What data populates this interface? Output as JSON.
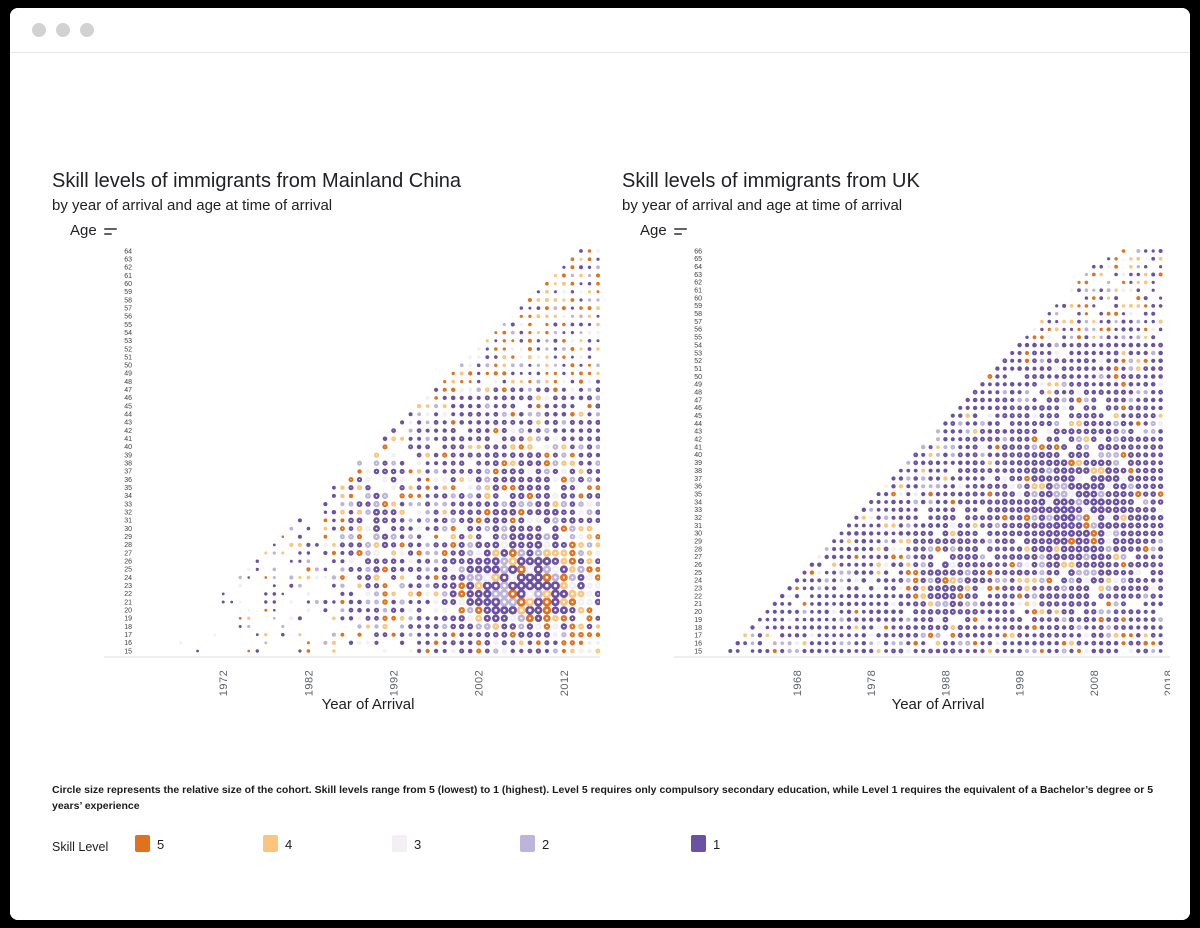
{
  "chart_data": [
    {
      "type": "scatter",
      "title": "Skill levels of immigrants from Mainland China",
      "subtitle": "by year of arrival and age at time of arrival",
      "xlabel": "Year of Arrival",
      "ylabel": "Age",
      "x_ticks": [
        1972,
        1982,
        1992,
        2002,
        2012
      ],
      "x_range": [
        1962,
        2016
      ],
      "y_range": [
        15,
        64
      ],
      "point_meaning": "each dot = arrival cohort (year x age); dot size = relative cohort size; colour = skill level 5 (lowest) to 1 (highest)",
      "legend_position": "bottom",
      "generation": {
        "seed": 20160315,
        "year_min": 1963,
        "year_max": 2016,
        "min_birth_year": 1950,
        "presence_rules": [
          {
            "year_lt": 1975,
            "p": 0.28
          },
          {
            "year_lt": 1985,
            "p": 0.5
          },
          {
            "year_lt": 1995,
            "p": 0.85
          },
          {
            "p": 0.97
          }
        ],
        "presence_mods": [
          {
            "age_gte": 50,
            "year_lt": 1998,
            "mult": 0.55
          },
          {
            "age_lte": 18,
            "year_lt": 1995,
            "mult": 0.6
          }
        ],
        "base_size_rules": [
          {
            "year_lt": 1980,
            "base": 1.55
          },
          {
            "year_lt": 1990,
            "base": 1.8
          },
          {
            "year_lt": 1998,
            "base": 2.0
          },
          {
            "base": 2.2
          }
        ],
        "size_blobs": [
          {
            "cx": 2007,
            "cy": 22.5,
            "sx": 5.5,
            "sy": 3.2,
            "amp": 2.6
          },
          {
            "cx": 2008,
            "cy": 32,
            "sx": 7,
            "sy": 7,
            "amp": 0.9
          },
          {
            "cx": 1989.5,
            "cy": 30,
            "sx": 2.6,
            "sy": 8,
            "amp": 1.2
          }
        ],
        "age_size_damp": [
          {
            "age_gte": 48,
            "mult": 0.8
          }
        ],
        "size_jitter": 0.3,
        "size_min": 1.2,
        "size_max": 4.6,
        "color_rules": [
          {
            "edge_within": 1,
            "year_gte": 1990,
            "weights": [
              0.33,
              0.2,
              0.1,
              0.1,
              0.27
            ]
          },
          {
            "age_gte": 48,
            "weights": [
              0.27,
              0.15,
              0.12,
              0.16,
              0.3
            ]
          },
          {
            "year_gte": 2013,
            "age_lte": 30,
            "weights": [
              0.22,
              0.22,
              0.14,
              0.12,
              0.3
            ]
          },
          {
            "year_gte": 2010,
            "age_lte": 22,
            "weights": [
              0.28,
              0.2,
              0.12,
              0.1,
              0.3
            ]
          },
          {
            "year_lt": 1985,
            "weights": [
              0.15,
              0.13,
              0.11,
              0.21,
              0.4
            ]
          },
          {
            "year_lt": 1995,
            "weights": [
              0.12,
              0.11,
              0.1,
              0.2,
              0.47
            ]
          },
          {
            "weights": [
              0.08,
              0.07,
              0.07,
              0.15,
              0.63
            ]
          }
        ]
      }
    },
    {
      "type": "scatter",
      "title": "Skill levels of immigrants from UK",
      "subtitle": "by year of arrival and age at time of arrival",
      "xlabel": "Year of Arrival",
      "ylabel": "Age",
      "x_ticks": [
        1968,
        1978,
        1988,
        1998,
        2008,
        2018
      ],
      "x_range": [
        1956,
        2018
      ],
      "y_range": [
        15,
        66
      ],
      "point_meaning": "each dot = arrival cohort (year x age); dot size = relative cohort size; colour = skill level 5 (lowest) to 1 (highest)",
      "legend_position": "bottom",
      "generation": {
        "seed": 19881027,
        "year_min": 1959,
        "year_max": 2017,
        "min_birth_year": 1944,
        "presence_rules": [
          {
            "age_gte": 58,
            "p": 0.8
          },
          {
            "year_lt": 1965,
            "p": 0.85
          },
          {
            "p": 0.96
          }
        ],
        "presence_mods": [],
        "base_size_rules": [
          {
            "year_lt": 1975,
            "base": 2.0
          },
          {
            "base": 2.1
          }
        ],
        "size_blobs": [
          {
            "cx": 2006,
            "cy": 33,
            "sx": 8,
            "sy": 9,
            "amp": 1.4
          },
          {
            "cx": 1988,
            "cy": 24,
            "sx": 3.2,
            "sy": 5,
            "amp": 1.1
          }
        ],
        "age_size_damp": [
          {
            "age_gte": 55,
            "mult": 0.85
          }
        ],
        "size_jitter": 0.25,
        "size_min": 1.4,
        "size_max": 3.9,
        "color_rules": [
          {
            "edge_within": 2,
            "year_gte": 2000,
            "weights": [
              0.22,
              0.16,
              0.08,
              0.12,
              0.42
            ]
          },
          {
            "age_gte": 55,
            "year_gte": 2004,
            "weights": [
              0.2,
              0.13,
              0.08,
              0.12,
              0.47
            ]
          },
          {
            "age_lte": 17,
            "year_gte": 2000,
            "weights": [
              0.1,
              0.08,
              0.05,
              0.1,
              0.67
            ]
          },
          {
            "weights": [
              0.05,
              0.045,
              0.045,
              0.1,
              0.76
            ]
          }
        ]
      }
    }
  ],
  "footnote": "Circle size represents the relative size of the cohort. Skill levels range from 5 (lowest) to 1 (highest). Level 5 requires only compulsory secondary education, while Level 1 requires the equivalent of a Bachelor’s degree or 5 years’ experience",
  "legend": {
    "label": "Skill Level",
    "items": [
      {
        "label": "5",
        "color": "#e2711d"
      },
      {
        "label": "4",
        "color": "#fcc57e"
      },
      {
        "label": "3",
        "color": "#f2f0f3"
      },
      {
        "label": "2",
        "color": "#bdb5d9"
      },
      {
        "label": "1",
        "color": "#6b51a3"
      }
    ]
  }
}
